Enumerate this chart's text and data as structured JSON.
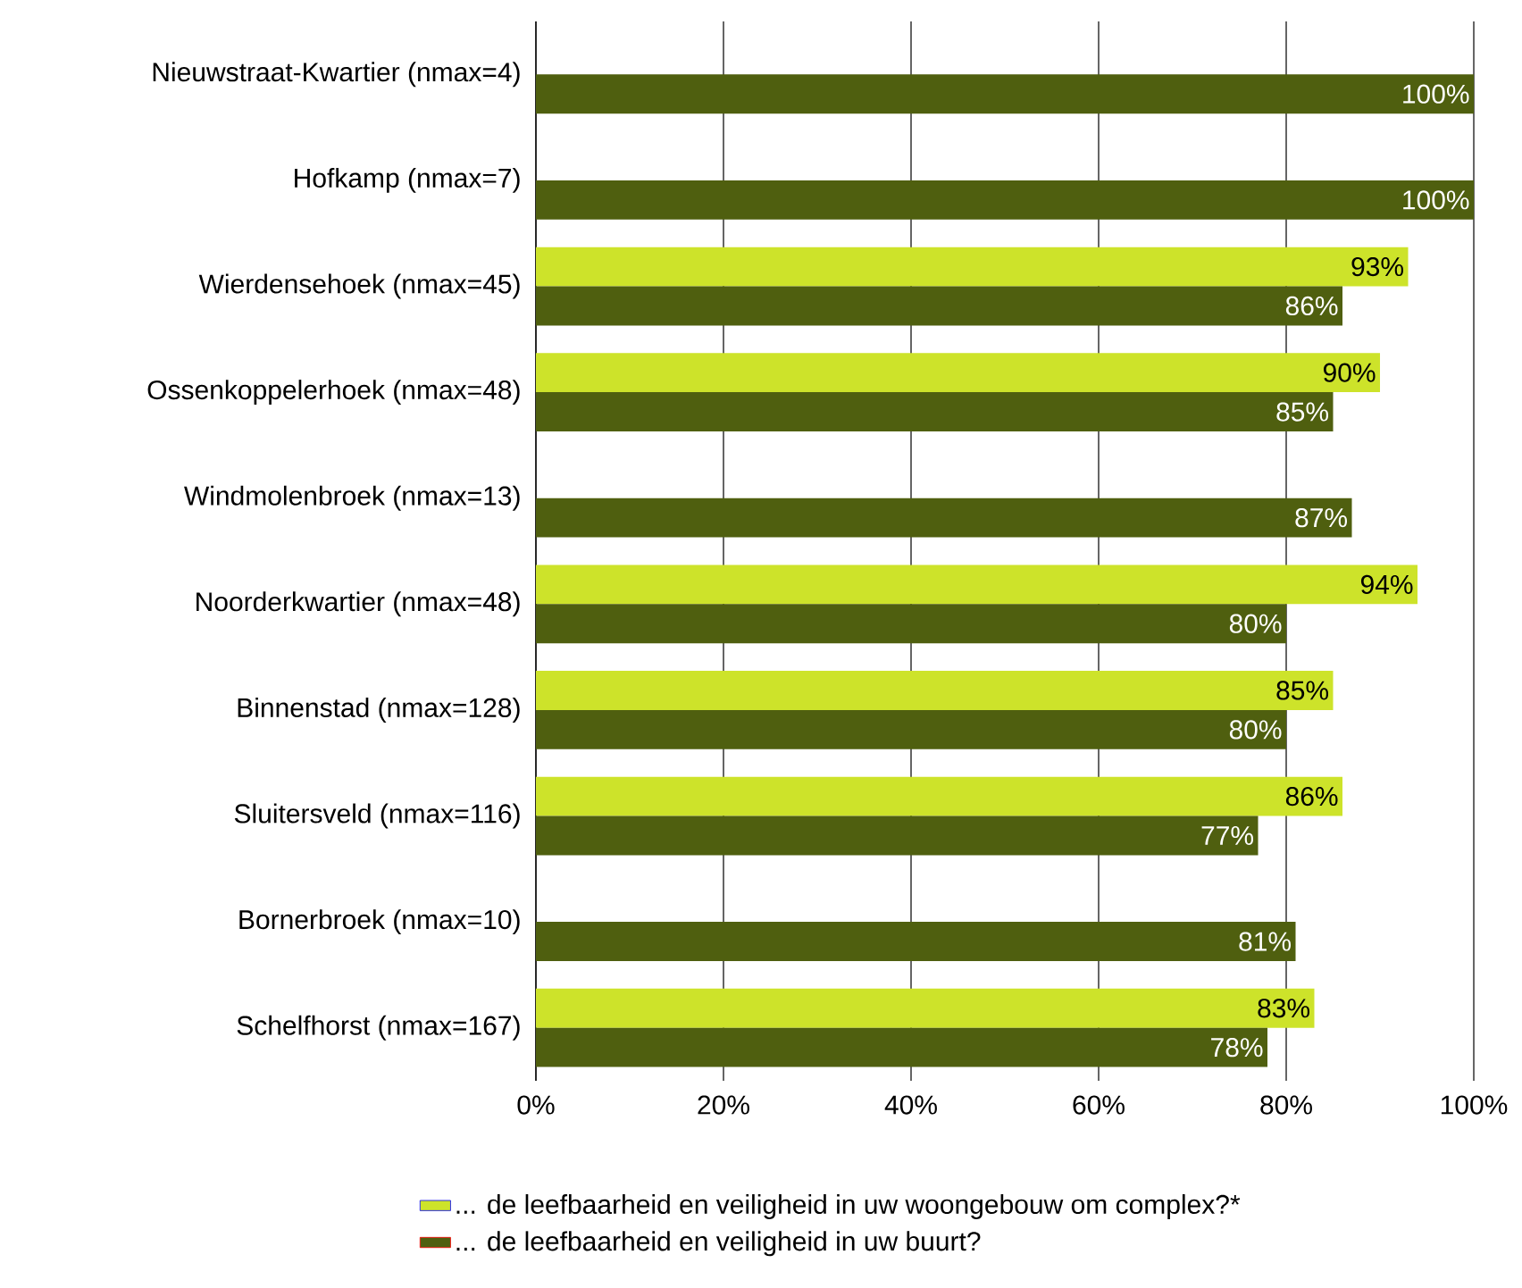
{
  "chart_data": {
    "type": "bar",
    "orientation": "horizontal",
    "categories": [
      "Nieuwstraat-Kwartier (nmax=4)",
      "Hofkamp (nmax=7)",
      "Wierdensehoek (nmax=45)",
      "Ossenkoppelerhoek (nmax=48)",
      "Windmolenbroek (nmax=13)",
      "Noorderkwartier (nmax=48)",
      "Binnenstad (nmax=128)",
      "Sluitersveld (nmax=116)",
      "Bornerbroek (nmax=10)",
      "Schelfhorst (nmax=167)"
    ],
    "series": [
      {
        "name": "... de leefbaarheid en veiligheid in uw woongebouw om complex?*",
        "color": "#cde32a",
        "values": [
          null,
          null,
          93,
          90,
          null,
          94,
          85,
          86,
          null,
          83
        ],
        "value_labels": [
          null,
          null,
          "93%",
          "90%",
          null,
          "94%",
          "85%",
          "86%",
          null,
          "83%"
        ]
      },
      {
        "name": "... de leefbaarheid en veiligheid in uw buurt?",
        "color": "#4f5f0f",
        "values": [
          100,
          100,
          86,
          85,
          87,
          80,
          80,
          77,
          81,
          78
        ],
        "value_labels": [
          "100%",
          "100%",
          "86%",
          "85%",
          "87%",
          "80%",
          "80%",
          "77%",
          "81%",
          "78%"
        ]
      }
    ],
    "xlim": [
      0,
      100
    ],
    "xticks": [
      {
        "value": 0,
        "label": "0%"
      },
      {
        "value": 20,
        "label": "20%"
      },
      {
        "value": 40,
        "label": "40%"
      },
      {
        "value": 60,
        "label": "60%"
      },
      {
        "value": 80,
        "label": "80%"
      },
      {
        "value": 100,
        "label": "100%"
      }
    ],
    "grid": "x",
    "legend": "bottom"
  }
}
